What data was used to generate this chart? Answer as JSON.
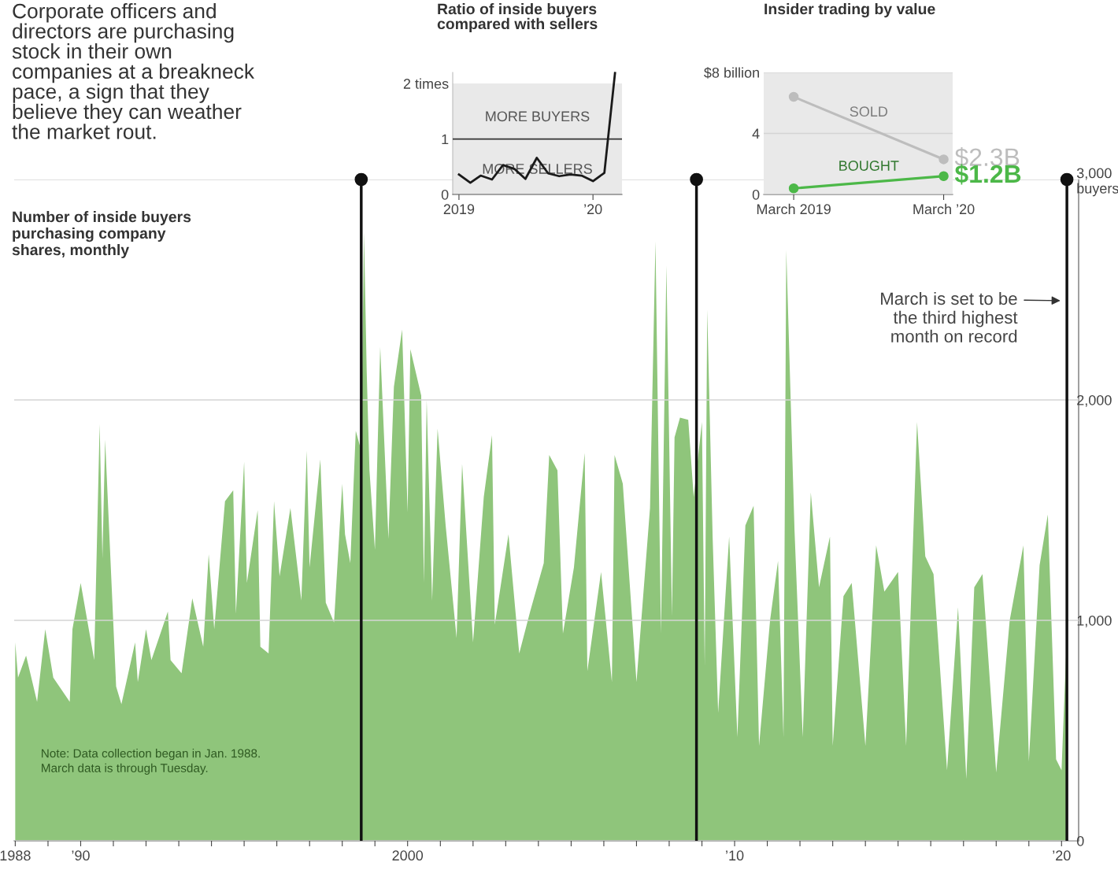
{
  "chart_data": [
    {
      "type": "area",
      "title": "Corporate officers and\ndirectors are purchasing\nstock in their own\ncompanies at a breakneck\npace, a sign that they\nbelieve they can weather\nthe market rout.",
      "subtitle": "Number of inside buyers\npurchasing company\nshares, monthly",
      "color": "#8fc57b",
      "x": [
        "1988-01",
        "1988-02",
        "1988-05",
        "1988-09",
        "1988-12",
        "1989-03",
        "1989-09",
        "1989-10",
        "1990-01",
        "1990-06",
        "1990-08",
        "1990-09",
        "1990-10",
        "1991-02",
        "1991-04",
        "1991-09",
        "1991-10",
        "1992-01",
        "1992-03",
        "1992-09",
        "1992-10",
        "1993-02",
        "1993-06",
        "1993-10",
        "1993-12",
        "1994-02",
        "1994-06",
        "1994-09",
        "1994-10",
        "1995-01",
        "1995-02",
        "1995-06",
        "1995-07",
        "1995-10",
        "1995-12",
        "1996-02",
        "1996-06",
        "1996-10",
        "1996-12",
        "1997-01",
        "1997-05",
        "1997-07",
        "1997-10",
        "1998-01",
        "1998-02",
        "1998-04",
        "1998-06",
        "1998-08",
        "1998-09",
        "1998-10",
        "1998-11",
        "1999-01",
        "1999-03",
        "1999-06",
        "1999-08",
        "1999-11",
        "2000-01",
        "2000-02",
        "2000-06",
        "2000-07",
        "2000-08",
        "2000-10",
        "2000-12",
        "2001-03",
        "2001-07",
        "2001-09",
        "2002-01",
        "2002-05",
        "2002-08",
        "2002-09",
        "2003-02",
        "2003-06",
        "2003-10",
        "2004-03",
        "2004-05",
        "2004-08",
        "2004-10",
        "2005-02",
        "2005-06",
        "2005-07",
        "2005-12",
        "2006-04",
        "2006-05",
        "2006-08",
        "2007-01",
        "2007-06",
        "2007-08",
        "2007-10",
        "2007-12",
        "2008-02",
        "2008-03",
        "2008-05",
        "2008-08",
        "2008-10",
        "2009-01",
        "2009-02",
        "2009-03",
        "2009-05",
        "2009-07",
        "2009-11",
        "2010-02",
        "2010-05",
        "2010-08",
        "2010-10",
        "2011-02",
        "2011-05",
        "2011-07",
        "2011-08",
        "2011-11",
        "2012-02",
        "2012-05",
        "2012-08",
        "2012-12",
        "2013-01",
        "2013-05",
        "2013-08",
        "2014-01",
        "2014-05",
        "2014-08",
        "2015-01",
        "2015-04",
        "2015-08",
        "2015-11",
        "2016-02",
        "2016-07",
        "2016-11",
        "2017-02",
        "2017-05",
        "2017-08",
        "2018-01",
        "2018-06",
        "2018-11",
        "2019-01",
        "2019-05",
        "2019-08",
        "2019-11",
        "2020-01",
        "2020-03"
      ],
      "values": [
        900,
        740,
        840,
        630,
        960,
        740,
        630,
        960,
        1170,
        820,
        1890,
        1280,
        1820,
        700,
        620,
        900,
        720,
        960,
        820,
        1040,
        820,
        760,
        1100,
        880,
        1300,
        960,
        1540,
        1590,
        1030,
        1720,
        1170,
        1500,
        880,
        850,
        1540,
        1200,
        1510,
        1090,
        1770,
        1240,
        1730,
        1080,
        990,
        1620,
        1390,
        1260,
        1860,
        1770,
        2760,
        2130,
        1680,
        1320,
        2240,
        1370,
        2060,
        2320,
        1490,
        2230,
        2020,
        1170,
        2000,
        1090,
        1870,
        1430,
        920,
        1710,
        900,
        1560,
        1840,
        980,
        1390,
        850,
        1040,
        1260,
        1750,
        1680,
        940,
        1240,
        1760,
        770,
        1220,
        720,
        1750,
        1620,
        720,
        1510,
        2720,
        940,
        2610,
        1020,
        1830,
        1920,
        1910,
        1560,
        1900,
        790,
        2410,
        1370,
        580,
        1380,
        470,
        1430,
        1520,
        430,
        1000,
        1270,
        470,
        2680,
        1410,
        470,
        1580,
        1150,
        1380,
        430,
        1110,
        1170,
        430,
        1340,
        1130,
        1220,
        430,
        1900,
        1290,
        1210,
        320,
        1060,
        280,
        1150,
        1210,
        310,
        1000,
        1340,
        360,
        1250,
        1480,
        370,
        320,
        940
      ],
      "xlim": [
        "1987-12-20",
        "2020-07-10"
      ],
      "ylim": [
        0,
        3000
      ],
      "xticks": [
        {
          "value": "1988-01",
          "label": "1988"
        },
        {
          "value": "1989-01",
          "label": null
        },
        {
          "value": "1990-01",
          "label": "’90"
        },
        {
          "value": "1991-01",
          "label": null
        },
        {
          "value": "1992-01",
          "label": null
        },
        {
          "value": "1993-01",
          "label": null
        },
        {
          "value": "1994-01",
          "label": null
        },
        {
          "value": "1995-01",
          "label": null
        },
        {
          "value": "1996-01",
          "label": null
        },
        {
          "value": "1997-01",
          "label": null
        },
        {
          "value": "1998-01",
          "label": null
        },
        {
          "value": "1999-01",
          "label": null
        },
        {
          "value": "2000-01",
          "label": "2000"
        },
        {
          "value": "2001-01",
          "label": null
        },
        {
          "value": "2002-01",
          "label": null
        },
        {
          "value": "2003-01",
          "label": null
        },
        {
          "value": "2004-01",
          "label": null
        },
        {
          "value": "2005-01",
          "label": null
        },
        {
          "value": "2006-01",
          "label": null
        },
        {
          "value": "2007-01",
          "label": null
        },
        {
          "value": "2008-01",
          "label": null
        },
        {
          "value": "2009-01",
          "label": null
        },
        {
          "value": "2010-01",
          "label": "’10"
        },
        {
          "value": "2011-01",
          "label": null
        },
        {
          "value": "2012-01",
          "label": null
        },
        {
          "value": "2013-01",
          "label": null
        },
        {
          "value": "2014-01",
          "label": null
        },
        {
          "value": "2015-01",
          "label": null
        },
        {
          "value": "2016-01",
          "label": null
        },
        {
          "value": "2017-01",
          "label": null
        },
        {
          "value": "2018-01",
          "label": null
        },
        {
          "value": "2019-01",
          "label": null
        },
        {
          "value": "2020-01",
          "label": "’20"
        }
      ],
      "yticks": [
        0,
        {
          "value": 1000,
          "label": "1,000"
        },
        {
          "value": 2000,
          "label": "2,000"
        },
        {
          "value": 3000,
          "label": "3,000\nbuyers"
        }
      ],
      "grid": "y",
      "ref_lines": [
        {
          "axis": "x",
          "value": "1998-08",
          "color": "#111111"
        },
        {
          "axis": "x",
          "value": "2008-11",
          "color": "#111111"
        },
        {
          "axis": "x",
          "value": "2020-03",
          "color": "#111111"
        }
      ],
      "annotations": [
        {
          "text": "March is set to be\nthe third highest\nmonth on record",
          "x": "2020-03",
          "y": 2450
        },
        "Note: Data collection began in Jan. 1988.\nMarch data is through Tuesday."
      ]
    },
    {
      "type": "line",
      "title": "Ratio of inside buyers\ncompared with sellers",
      "color": "#1a1a1a",
      "x": [
        "2019-01",
        "2019-02",
        "2019-03",
        "2019-04",
        "2019-05",
        "2019-06",
        "2019-07",
        "2019-08",
        "2019-09",
        "2019-10",
        "2019-11",
        "2019-12",
        "2020-01",
        "2020-02",
        "2020-03"
      ],
      "values": [
        0.36,
        0.21,
        0.34,
        0.27,
        0.53,
        0.46,
        0.28,
        0.66,
        0.38,
        0.33,
        0.36,
        0.34,
        0.24,
        0.39,
        2.19
      ],
      "xlim": [
        "2018-12-15",
        "2020-03-20"
      ],
      "ylim": [
        0,
        2.2
      ],
      "xticks": [
        {
          "value": "2019-01",
          "label": "2019"
        },
        {
          "value": "2020-01",
          "label": "’20"
        }
      ],
      "yticks": [
        0,
        1,
        {
          "value": 2,
          "label": "2 times"
        }
      ],
      "ref_lines": [
        {
          "axis": "y",
          "value": 1,
          "color": "#333333"
        }
      ],
      "bands": [
        {
          "axis": "y",
          "from": 0,
          "to": 2,
          "color": "#e9e9e9"
        }
      ],
      "annotations": [
        "MORE BUYERS",
        "MORE SELLERS"
      ]
    },
    {
      "type": "line",
      "title": "Insider trading by value",
      "categories": [
        "March 2019",
        "March ’20"
      ],
      "series": [
        {
          "name": "SOLD",
          "color": "#bdbdbd",
          "values": [
            6.4,
            2.3
          ],
          "value_labels": [
            null,
            "$2.3B"
          ]
        },
        {
          "name": "BOUGHT",
          "color": "#4cb848",
          "values": [
            0.4,
            1.2
          ],
          "value_labels": [
            null,
            "$1.2B"
          ]
        }
      ],
      "marker": "circle",
      "ylim": [
        0,
        8
      ],
      "yticks": [
        0,
        4,
        {
          "value": 8,
          "label": "$8 billion"
        }
      ],
      "grid": "y",
      "bands": [
        {
          "axis": "y",
          "from": 0,
          "to": 8,
          "color": "#e9e9e9"
        }
      ]
    }
  ]
}
